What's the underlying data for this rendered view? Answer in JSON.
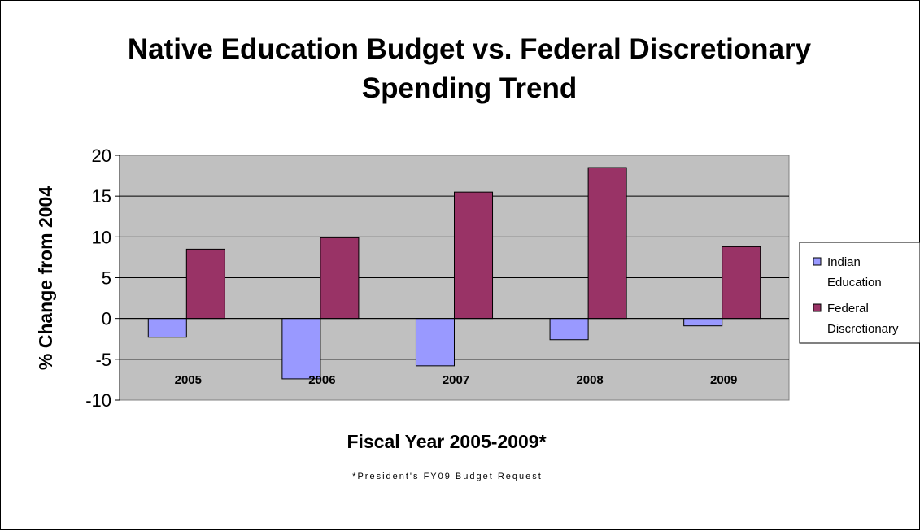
{
  "chart_data": {
    "type": "bar",
    "title_lines": [
      "Native Education Budget vs. Federal Discretionary",
      "Spending Trend"
    ],
    "xlabel": "Fiscal Year 2005-2009*",
    "ylabel": "% Change from 2004",
    "footnote": "*President's FY09 Budget Request",
    "categories": [
      "2005",
      "2006",
      "2007",
      "2008",
      "2009"
    ],
    "ylim": [
      -10,
      20
    ],
    "yticks": [
      "20",
      "15",
      "10",
      "5",
      "0",
      "-5",
      "-10"
    ],
    "ytick_values": [
      20,
      15,
      10,
      5,
      0,
      -5,
      -10
    ],
    "grid": true,
    "legend_position": "right",
    "series": [
      {
        "name_lines": [
          "Indian",
          "Education"
        ],
        "color": "#9999ff",
        "values": [
          -2.3,
          -7.4,
          -5.8,
          -2.6,
          -0.9
        ]
      },
      {
        "name_lines": [
          "Federal",
          "Discretionary"
        ],
        "color": "#993366",
        "values": [
          8.5,
          9.9,
          15.5,
          18.5,
          8.8
        ]
      }
    ],
    "plot_bg": "#c0c0c0"
  }
}
